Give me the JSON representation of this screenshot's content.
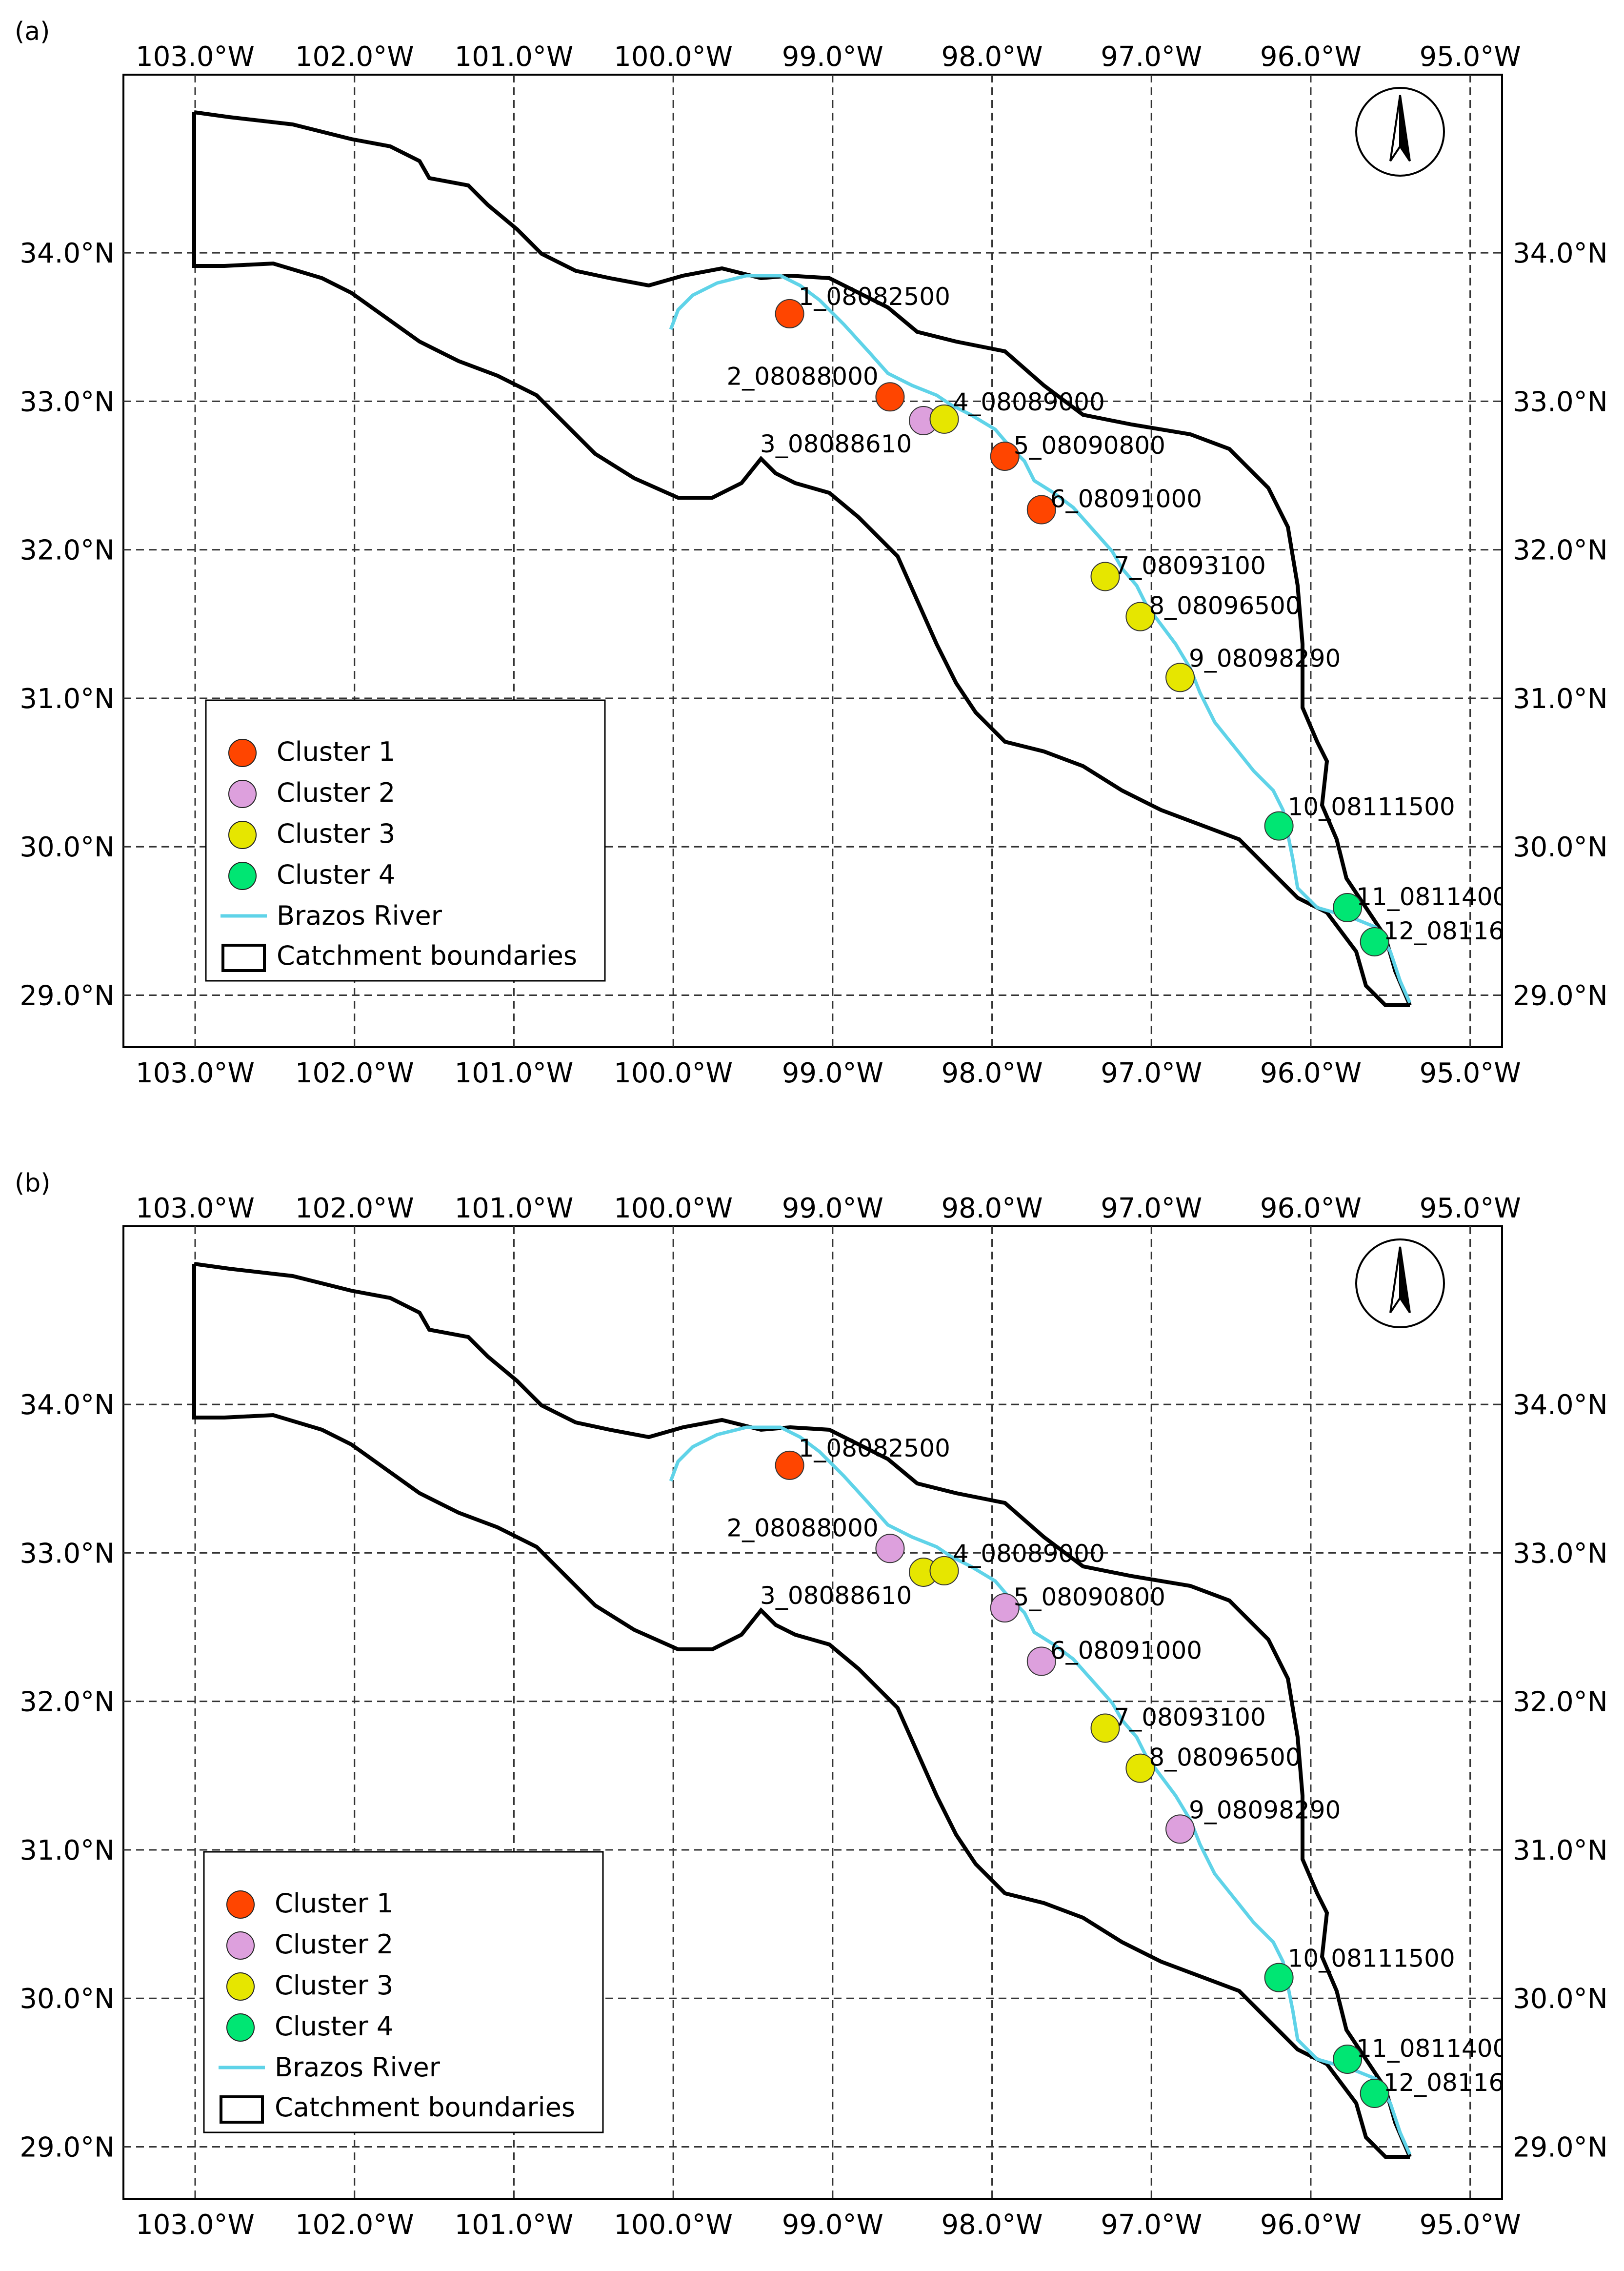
{
  "panels": [
    {
      "label": "(a)",
      "station_clusters": [
        1,
        1,
        2,
        3,
        1,
        1,
        3,
        3,
        3,
        4,
        4,
        4
      ]
    },
    {
      "label": "(b)",
      "station_clusters": [
        1,
        2,
        3,
        3,
        2,
        2,
        3,
        3,
        2,
        4,
        4,
        4
      ]
    }
  ],
  "axes": {
    "lon_ticks": [
      "103.0°W",
      "102.0°W",
      "101.0°W",
      "100.0°W",
      "99.0°W",
      "98.0°W",
      "97.0°W",
      "96.0°W",
      "95.0°W"
    ],
    "lat_ticks": [
      "34.0°N",
      "33.0°N",
      "32.0°N",
      "31.0°N",
      "30.0°N",
      "29.0°N"
    ],
    "lon_values": [
      -103,
      -102,
      -101,
      -100,
      -99,
      -98,
      -97,
      -96,
      -95
    ],
    "lat_values": [
      34,
      33,
      32,
      31,
      30,
      29
    ],
    "lon_range": [
      -103.45,
      -94.8
    ],
    "lat_range": [
      28.65,
      35.2
    ]
  },
  "stations": [
    {
      "label": "1_08082500",
      "lon": -99.27,
      "lat": 33.59
    },
    {
      "label": "2_08088000",
      "lon": -98.64,
      "lat": 33.03
    },
    {
      "label": "3_08088610",
      "lon": -98.43,
      "lat": 32.87
    },
    {
      "label": "4_08089000",
      "lon": -98.3,
      "lat": 32.88
    },
    {
      "label": "5_08090800",
      "lon": -97.92,
      "lat": 32.63
    },
    {
      "label": "6_08091000",
      "lon": -97.69,
      "lat": 32.27
    },
    {
      "label": "7_08093100",
      "lon": -97.29,
      "lat": 31.82
    },
    {
      "label": "8_08096500",
      "lon": -97.07,
      "lat": 31.55
    },
    {
      "label": "9_08098290",
      "lon": -96.82,
      "lat": 31.14
    },
    {
      "label": "10_08111500",
      "lon": -96.2,
      "lat": 30.14
    },
    {
      "label": "11_0811400",
      "lon": -95.77,
      "lat": 29.59
    },
    {
      "label": "12_08116",
      "lon": -95.6,
      "lat": 29.36
    }
  ],
  "legend": {
    "items": [
      {
        "label": "Cluster 1",
        "cluster": 1
      },
      {
        "label": "Cluster 2",
        "cluster": 2
      },
      {
        "label": "Cluster 3",
        "cluster": 3
      },
      {
        "label": "Cluster 4",
        "cluster": 4
      },
      {
        "label": "Brazos River",
        "kind": "river"
      },
      {
        "label": "Catchment boundaries",
        "kind": "boundary"
      }
    ]
  },
  "colors": {
    "cluster_1": "#ff4500",
    "cluster_2": "#dda0dd",
    "cluster_3": "#e6e600",
    "cluster_4": "#00e673",
    "river": "#5fd3e8",
    "boundary": "#000000",
    "grid": "#333333"
  },
  "compass": {
    "icon": "north-arrow-icon"
  }
}
